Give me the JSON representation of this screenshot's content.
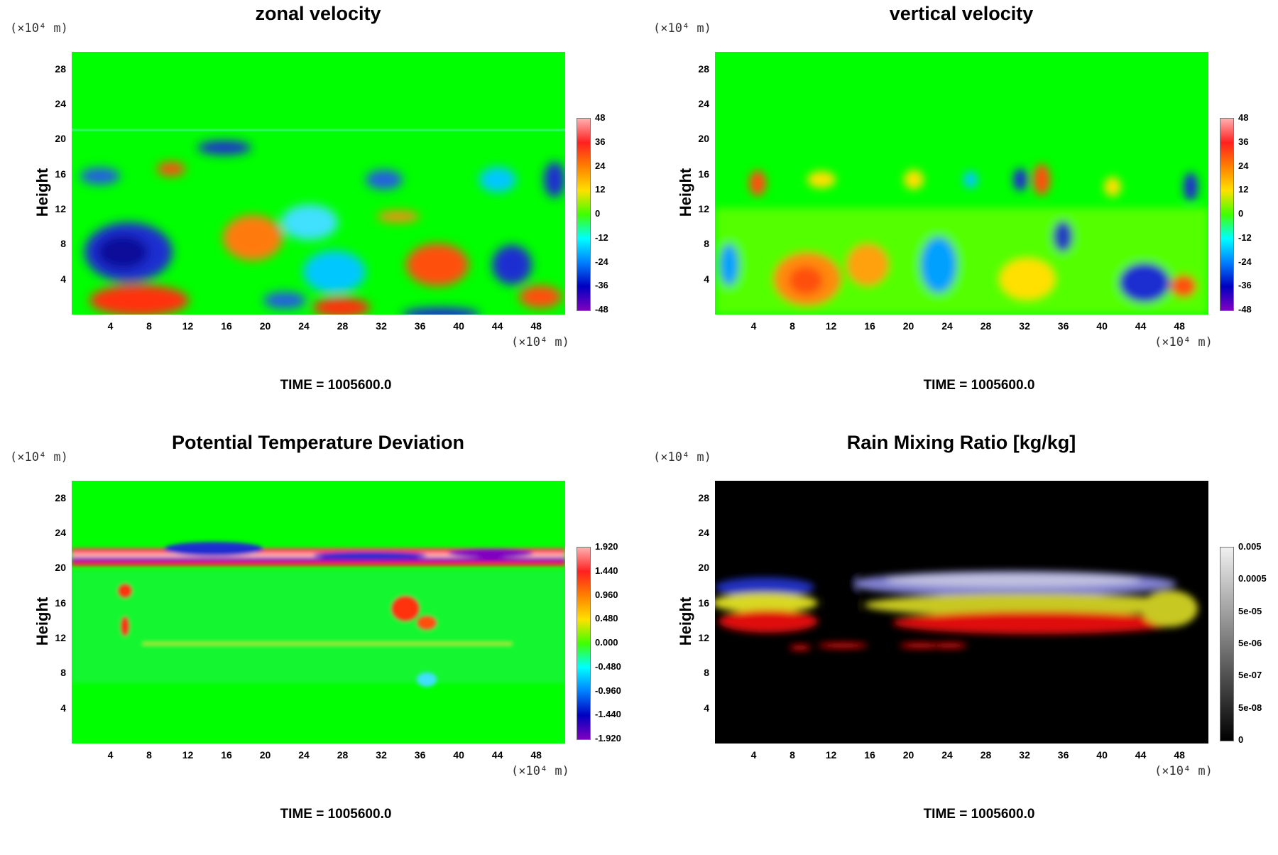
{
  "panels": [
    {
      "title": "zonal velocity",
      "y_unit": "(×10⁴ m)",
      "x_unit": "(×10⁴ m)",
      "ylabel": "Height",
      "y_ticks": [
        "28",
        "24",
        "20",
        "16",
        "12",
        "8",
        "4"
      ],
      "x_ticks": [
        "4",
        "8",
        "12",
        "16",
        "20",
        "24",
        "28",
        "32",
        "36",
        "40",
        "44",
        "48"
      ],
      "colorbar_labels": [
        "48",
        "36",
        "24",
        "12",
        "0",
        "-12",
        "-24",
        "-36",
        "-48"
      ],
      "time_label": "TIME = 1005600.0"
    },
    {
      "title": "vertical velocity",
      "y_unit": "(×10⁴ m)",
      "x_unit": "(×10⁴ m)",
      "ylabel": "Height",
      "y_ticks": [
        "28",
        "24",
        "20",
        "16",
        "12",
        "8",
        "4"
      ],
      "x_ticks": [
        "4",
        "8",
        "12",
        "16",
        "20",
        "24",
        "28",
        "32",
        "36",
        "40",
        "44",
        "48"
      ],
      "colorbar_labels": [
        "48",
        "36",
        "24",
        "12",
        "0",
        "-12",
        "-24",
        "-36",
        "-48"
      ],
      "time_label": "TIME = 1005600.0"
    },
    {
      "title": "Potential Temperature Deviation",
      "y_unit": "(×10⁴ m)",
      "x_unit": "(×10⁴ m)",
      "ylabel": "Height",
      "y_ticks": [
        "28",
        "24",
        "20",
        "16",
        "12",
        "8",
        "4"
      ],
      "x_ticks": [
        "4",
        "8",
        "12",
        "16",
        "20",
        "24",
        "28",
        "32",
        "36",
        "40",
        "44",
        "48"
      ],
      "colorbar_labels": [
        "1.920",
        "1.440",
        "0.960",
        "0.480",
        "0.000",
        "-0.480",
        "-0.960",
        "-1.440",
        "-1.920"
      ],
      "time_label": "TIME = 1005600.0"
    },
    {
      "title": "Rain Mixing Ratio [kg/kg]",
      "y_unit": "(×10⁴ m)",
      "x_unit": "(×10⁴ m)",
      "ylabel": "Height",
      "y_ticks": [
        "28",
        "24",
        "20",
        "16",
        "12",
        "8",
        "4"
      ],
      "x_ticks": [
        "4",
        "8",
        "12",
        "16",
        "20",
        "24",
        "28",
        "32",
        "36",
        "40",
        "44",
        "48"
      ],
      "colorbar_labels": [
        "0.005",
        "0.0005",
        "5e-05",
        "5e-06",
        "5e-07",
        "5e-08",
        "0"
      ],
      "time_label": "TIME = 1005600.0"
    }
  ],
  "chart_data": [
    {
      "type": "heatmap",
      "title": "zonal velocity",
      "xlabel": "",
      "ylabel": "Height",
      "xlim": [
        0,
        51
      ],
      "ylim": [
        0,
        30
      ],
      "colorbar": [
        48,
        36,
        24,
        12,
        0,
        -12,
        -24,
        -36,
        -48
      ],
      "grid": false
    },
    {
      "type": "heatmap",
      "title": "vertical velocity",
      "xlabel": "",
      "ylabel": "Height",
      "xlim": [
        0,
        51
      ],
      "ylim": [
        0,
        30
      ],
      "colorbar": [
        48,
        36,
        24,
        12,
        0,
        -12,
        -24,
        -36,
        -48
      ],
      "grid": false
    },
    {
      "type": "heatmap",
      "title": "Potential Temperature Deviation",
      "xlabel": "",
      "ylabel": "Height",
      "xlim": [
        0,
        51
      ],
      "ylim": [
        0,
        30
      ],
      "colorbar": [
        1.92,
        1.44,
        0.96,
        0.48,
        0.0,
        -0.48,
        -0.96,
        -1.44,
        -1.92
      ],
      "grid": false
    },
    {
      "type": "heatmap",
      "title": "Rain Mixing Ratio [kg/kg]",
      "xlabel": "",
      "ylabel": "Height",
      "xlim": [
        0,
        51
      ],
      "ylim": [
        0,
        30
      ],
      "colorbar": [
        "0.005",
        "0.0005",
        "5e-05",
        "5e-06",
        "5e-07",
        "5e-08",
        "0"
      ],
      "grid": false
    }
  ],
  "colors": {
    "field_background": "#00ff00",
    "rain_background": "#000000"
  }
}
